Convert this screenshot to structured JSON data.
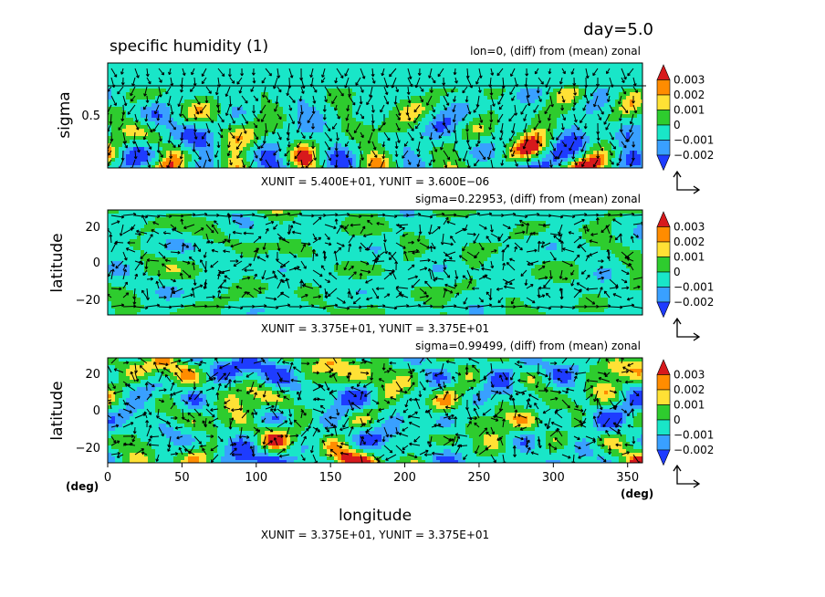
{
  "header": {
    "day_label": "day=5.0",
    "title": "specific humidity (1)"
  },
  "xaxis": {
    "label": "longitude",
    "unit_left": "(deg)",
    "unit_right": "(deg)",
    "ticks": [
      "0",
      "50",
      "100",
      "150",
      "200",
      "250",
      "300",
      "350"
    ]
  },
  "colorbar": {
    "labels": [
      "0.003",
      "0.002",
      "0.001",
      "0",
      "−0.001",
      "−0.002"
    ],
    "colors": [
      "#d7191c",
      "#ff8c00",
      "#ffe135",
      "#2ecc2e",
      "#19e6c8",
      "#39a0ff",
      "#1e3cff"
    ]
  },
  "chart_data": [
    {
      "type": "heatmap",
      "id": "panel1",
      "subtitle": "lon=0, (diff) from (mean) zonal",
      "ylabel": "sigma",
      "yticks": [
        "0.5"
      ],
      "unit_text": "XUNIT = 5.400E+01, YUNIT = 3.600E−06",
      "xlim": [
        0,
        360
      ],
      "ylim": [
        1,
        0
      ],
      "color_levels": [
        -0.002,
        -0.001,
        0,
        0.001,
        0.002,
        0.003
      ],
      "overlay": "vector arrows"
    },
    {
      "type": "heatmap",
      "id": "panel2",
      "subtitle": "sigma=0.22953, (diff) from (mean) zonal",
      "ylabel": "latitude",
      "yticks": [
        "20",
        "0",
        "−20"
      ],
      "unit_text": "XUNIT = 3.375E+01, YUNIT = 3.375E+01",
      "xlim": [
        0,
        360
      ],
      "ylim": [
        -30,
        30
      ],
      "color_levels": [
        -0.002,
        -0.001,
        0,
        0.001,
        0.002,
        0.003
      ],
      "overlay": "vector arrows"
    },
    {
      "type": "heatmap",
      "id": "panel3",
      "subtitle": "sigma=0.99499, (diff) from (mean) zonal",
      "ylabel": "latitude",
      "yticks": [
        "20",
        "0",
        "−20"
      ],
      "unit_text": "XUNIT = 3.375E+01, YUNIT = 3.375E+01",
      "xlim": [
        0,
        360
      ],
      "ylim": [
        -30,
        30
      ],
      "color_levels": [
        -0.002,
        -0.001,
        0,
        0.001,
        0.002,
        0.003
      ],
      "overlay": "vector arrows"
    }
  ]
}
